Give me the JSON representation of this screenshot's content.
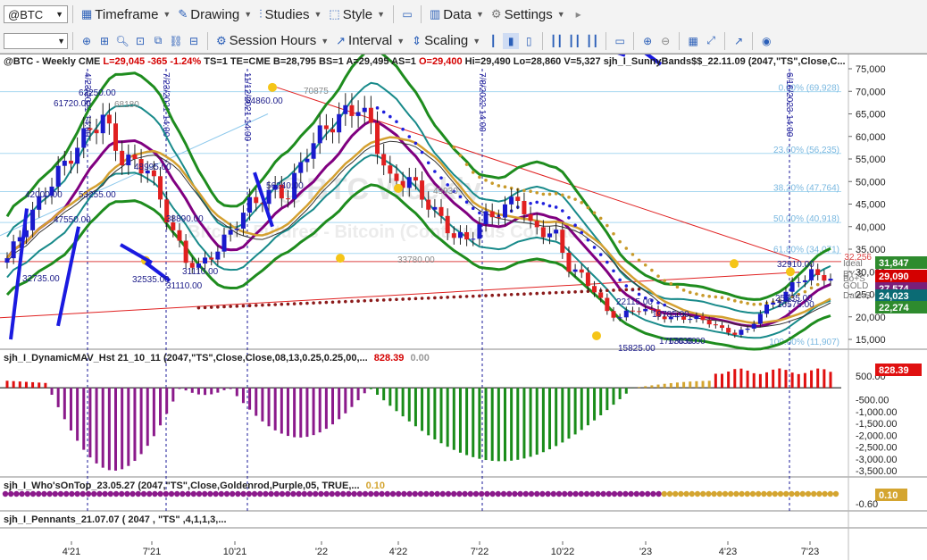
{
  "toolbar1": {
    "symbol": "@BTC",
    "items": [
      {
        "label": "Timeframe",
        "icon": "calendar-icon"
      },
      {
        "label": "Drawing",
        "icon": "pencil-icon"
      },
      {
        "label": "Studies",
        "icon": "studies-icon"
      },
      {
        "label": "Style",
        "icon": "style-icon"
      },
      {
        "label": "Data",
        "icon": "data-icon"
      },
      {
        "label": "Settings",
        "icon": "gear-icon"
      }
    ]
  },
  "toolbar2": {
    "items": [
      {
        "label": "Session Hours",
        "icon": "session-icon"
      },
      {
        "label": "Interval",
        "icon": "interval-icon"
      },
      {
        "label": "Scaling",
        "icon": "scaling-icon"
      }
    ]
  },
  "header": {
    "symbol": "@BTC - Weekly  CME",
    "last": "L=29,045",
    "chg": "-365",
    "pct": "-1.24%",
    "rest": "TS=1  TE=CME  B=28,795  BS=1  A=29,495  AS=1",
    "open": "O=29,400",
    "rest2": "Hi=29,490  Lo=28,860  V=5,327",
    "study": "sjh_I_SunnyBands$$_22.11.09 (2047,\"TS\",Close,C..."
  },
  "watermark": {
    "title": "@BTC Weekly",
    "subtitle": "Bitcoin Futures - Bitcoin (Continuous Contract)"
  },
  "price_axis": {
    "ticks": [
      "75,000",
      "70,000",
      "65,000",
      "60,000",
      "55,000",
      "50,000",
      "45,000",
      "40,000",
      "35,000",
      "30,000",
      "25,000",
      "20,000",
      "15,000"
    ],
    "tags": [
      {
        "label": "31,847",
        "color": "#2e8b2e"
      },
      {
        "label": "29,090",
        "color": "#d40000"
      },
      {
        "label": "27,574",
        "color": "#7a1f7a"
      },
      {
        "label": "24,023",
        "color": "#0b6b74"
      },
      {
        "label": "22,274",
        "color": "#2e8b2e"
      }
    ],
    "fib_levels": [
      "0.00% (69,928)",
      "23.60% (56,235)",
      "38.20% (47,764)",
      "50.00% (40,918)",
      "61.80% (34,071)",
      "100.00% (11,907)"
    ],
    "red_level": "32,256",
    "right_labels": [
      "Ideal",
      "BY-S",
      "Bo+S",
      "GOLD",
      "Date-S"
    ]
  },
  "price_labels": [
    "61720.00",
    "63250.00",
    "68180",
    "64860.00",
    "48995.00",
    "53255.00",
    "70875",
    "56240.00",
    "49930",
    "42000.00",
    "47550.00",
    "38890.00",
    "31110.00",
    "31110.00",
    "32535.00",
    "33780.00",
    "32735.00",
    "22115.00",
    "19785.00",
    "17630.00",
    "17630.00",
    "15825.00",
    "32910.00",
    "25335.00",
    "26575.00"
  ],
  "vlines": [
    "4/23/2021 14:00",
    "7/23/2021 14:00",
    "11/12/2021 14:00",
    "7/8/2022 14:00",
    "6/16/2023 14:00"
  ],
  "indicators": {
    "dyn": {
      "name": "sjh_I_DynamicMAV_Hst 21_10_11 (2047,\"TS\",Close,Close,08,13,0.25,0.25,00,...",
      "val1": "828.39",
      "val2": "0.00",
      "ticks": [
        "500.00",
        "-500.00",
        "-1,000.00",
        "-1,500.00",
        "-2,000.00",
        "-2,500.00",
        "-3,000.00",
        "-3,500.00"
      ],
      "tag": "828.39"
    },
    "who": {
      "name": "sjh_I_Who'sOnTop_23.05.27 (2047,\"TS\",Close,Goldenrod,Purple,05,  TRUE,...",
      "val": "0.10",
      "ticks": [
        "-0.60"
      ],
      "tag": "0.10"
    },
    "pen": {
      "name": "sjh_I_Pennants_21.07.07 ( 2047 , \"TS\" ,4,1,1,3,..."
    }
  },
  "time_axis": [
    "4'21",
    "7'21",
    "10'21",
    "'22",
    "4'22",
    "7'22",
    "10'22",
    "'23",
    "4'23",
    "7'23"
  ],
  "colors": {
    "up": "#1a1acc",
    "down": "#e02020",
    "green_band": "#1e8c1e",
    "teal_band": "#188a8a",
    "purple_ma": "#800080",
    "gold_ma": "#d4a030",
    "hist_purple": "#8b1a8b",
    "hist_green": "#1a8c1a",
    "hist_gold": "#d4a530",
    "hist_red": "#e01010"
  }
}
